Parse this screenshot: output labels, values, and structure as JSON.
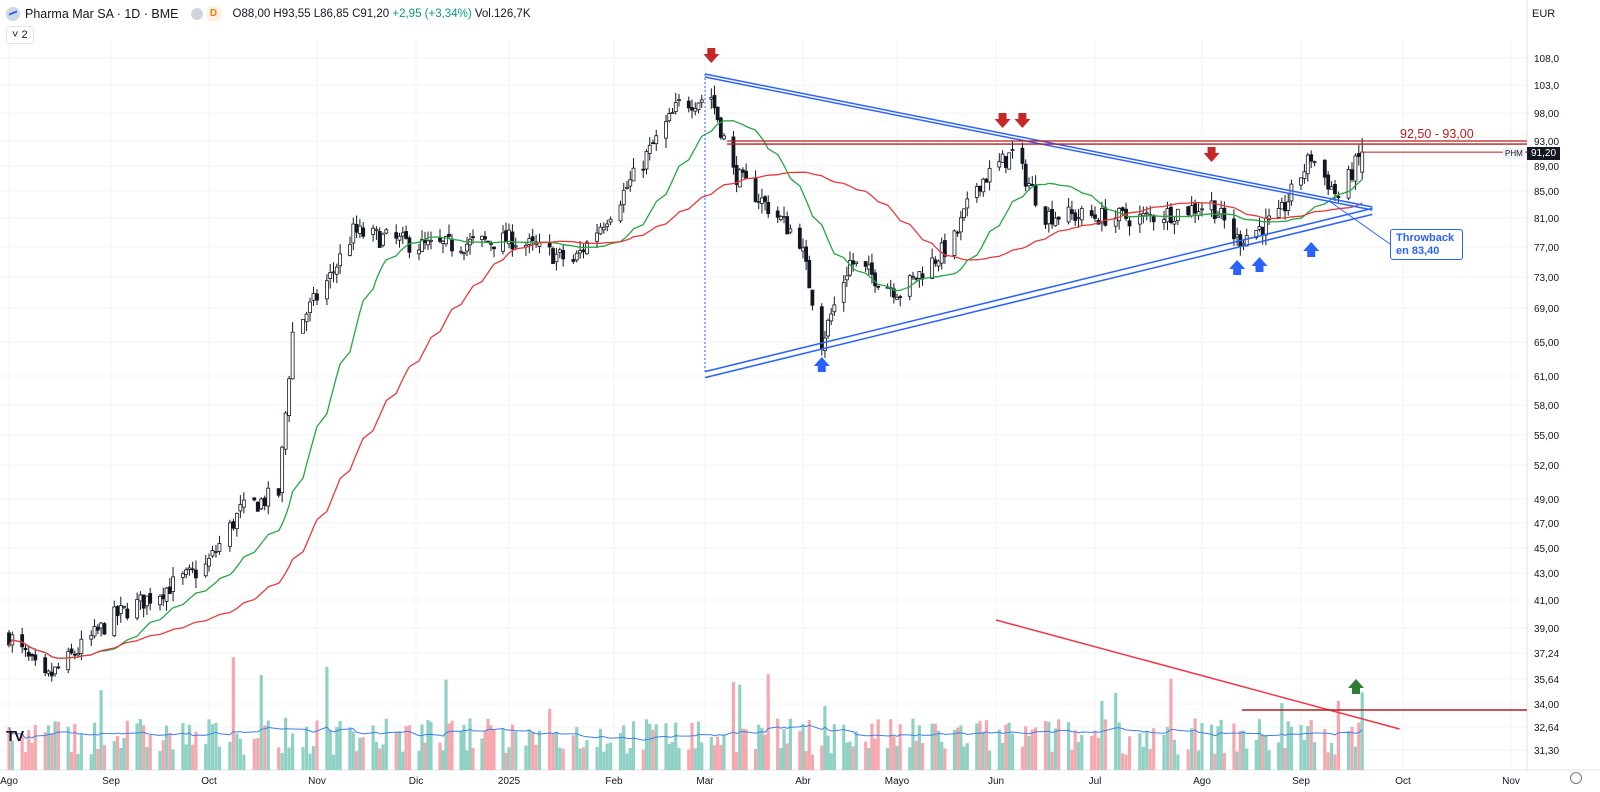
{
  "header": {
    "title": "Pharma Mar SA · 1D · BME",
    "exchange_badge": "D",
    "ohlc": "O88,00 H93,55 L86,85 C91,20",
    "change": "+2,95 (+3,34%)",
    "volume": "Vol.126,7K",
    "indicator_count": "2",
    "currency": "EUR"
  },
  "annotations": {
    "resistance_label": "92,50 - 93,00",
    "throwback_line1": "Throwback",
    "throwback_line2": "en 83,40",
    "symbol_tag": "PHM",
    "last_price": "91,20"
  },
  "colors": {
    "up": "#089981",
    "down": "#f23645",
    "candle": "#131722",
    "ma_fast": "#26a641",
    "ma_slow": "#e83a3a",
    "trend": "#2962ff",
    "resistance": "#b71c1c",
    "vol_ma": "#3d7eea"
  },
  "chart_data": {
    "type": "candlestick",
    "y_scale": "log",
    "y_ticks": [
      "108,0",
      "103,0",
      "98,00",
      "93,00",
      "89,00",
      "85,00",
      "81,00",
      "77,00",
      "73,00",
      "69,00",
      "65,00",
      "61,00",
      "58,00",
      "55,00",
      "52,00",
      "49,00",
      "47,00",
      "45,00",
      "43,00",
      "41,00",
      "39,00",
      "37,24",
      "35,64",
      "34,00",
      "32,64",
      "31,30"
    ],
    "x_ticks": [
      "Ago",
      "Sep",
      "Oct",
      "Nov",
      "Dic",
      "2025",
      "Feb",
      "Mar",
      "Abr",
      "Mayo",
      "Jun",
      "Jul",
      "Ago",
      "Sep",
      "Oct",
      "Nov"
    ],
    "x_range": [
      "2024-08-01",
      "2025-11-30"
    ],
    "y_range": [
      31.3,
      110
    ],
    "key_price_path": [
      {
        "date": "2024-08-01",
        "close": 38.5
      },
      {
        "date": "2024-08-12",
        "close": 35.5
      },
      {
        "date": "2024-09-02",
        "close": 39.8
      },
      {
        "date": "2024-09-30",
        "close": 43.5
      },
      {
        "date": "2024-10-10",
        "close": 48.0
      },
      {
        "date": "2024-10-21",
        "close": 49.5
      },
      {
        "date": "2024-10-25",
        "close": 66.0
      },
      {
        "date": "2024-11-05",
        "close": 73.0
      },
      {
        "date": "2024-11-12",
        "close": 79.0
      },
      {
        "date": "2024-12-05",
        "close": 77.0
      },
      {
        "date": "2025-01-02",
        "close": 78.0
      },
      {
        "date": "2025-01-20",
        "close": 75.0
      },
      {
        "date": "2025-02-03",
        "close": 84.0
      },
      {
        "date": "2025-02-21",
        "close": 99.5
      },
      {
        "date": "2025-03-03",
        "close": 101.0
      },
      {
        "date": "2025-03-10",
        "close": 88.0
      },
      {
        "date": "2025-03-31",
        "close": 78.0
      },
      {
        "date": "2025-04-07",
        "close": 65.0
      },
      {
        "date": "2025-04-16",
        "close": 75.0
      },
      {
        "date": "2025-05-02",
        "close": 71.0
      },
      {
        "date": "2025-05-19",
        "close": 78.0
      },
      {
        "date": "2025-05-26",
        "close": 86.0
      },
      {
        "date": "2025-06-06",
        "close": 91.0
      },
      {
        "date": "2025-06-16",
        "close": 81.5
      },
      {
        "date": "2025-07-15",
        "close": 81.0
      },
      {
        "date": "2025-08-04",
        "close": 83.0
      },
      {
        "date": "2025-08-12",
        "close": 78.0
      },
      {
        "date": "2025-08-25",
        "close": 81.0
      },
      {
        "date": "2025-09-04",
        "close": 90.5
      },
      {
        "date": "2025-09-12",
        "close": 84.0
      },
      {
        "date": "2025-09-19",
        "close": 91.2
      }
    ],
    "resistance_zone": [
      92.5,
      93.0
    ],
    "throwback_level": 83.4,
    "last_close": 91.2,
    "triangle_upper": [
      {
        "date": "2025-03-01",
        "price": 105.0
      },
      {
        "date": "2025-09-22",
        "price": 82.6
      }
    ],
    "triangle_lower": [
      {
        "date": "2025-03-01",
        "price": 61.5
      },
      {
        "date": "2025-09-22",
        "price": 82.4
      }
    ],
    "down_arrows_dates": [
      "2025-03-03",
      "2025-06-03",
      "2025-06-09",
      "2025-08-04"
    ],
    "up_arrows_dates": [
      "2025-04-07",
      "2025-08-12",
      "2025-08-19",
      "2025-09-04"
    ],
    "volume_trend_line": [
      {
        "date": "2025-06-01",
        "rel": 0.3
      },
      {
        "date": "2025-09-30",
        "rel": 0.07
      }
    ]
  }
}
